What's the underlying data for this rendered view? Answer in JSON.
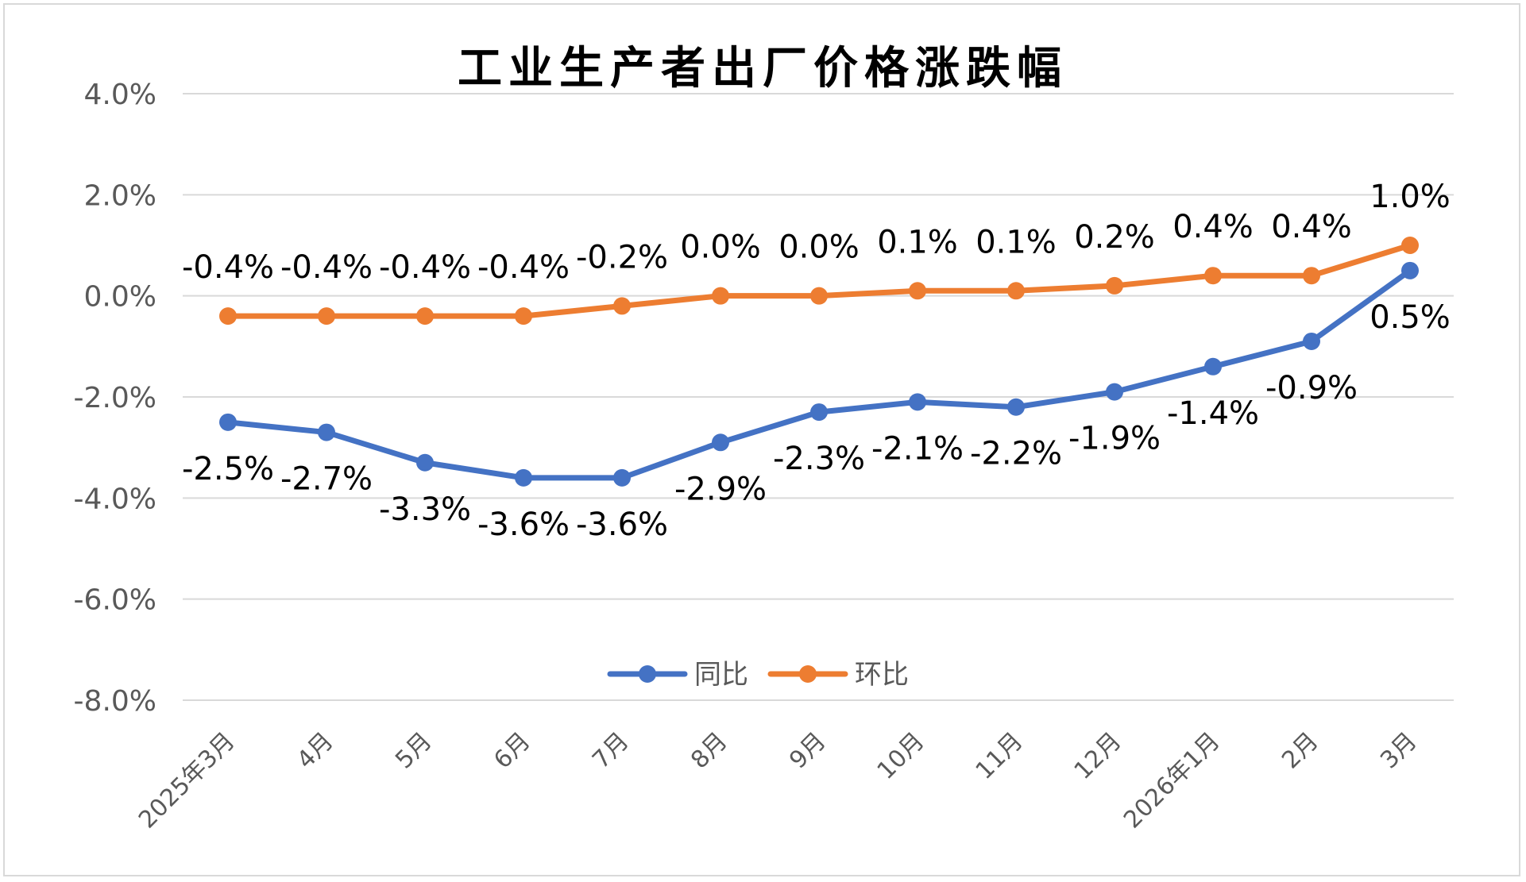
{
  "chart_data": {
    "type": "line",
    "title": "工业生产者出厂价格涨跌幅",
    "xlabel": "",
    "ylabel": "",
    "ylim": [
      -8.0,
      4.0
    ],
    "yticks": [
      4.0,
      2.0,
      0.0,
      -2.0,
      -4.0,
      -6.0,
      -8.0
    ],
    "ytick_labels": [
      "4.0%",
      "2.0%",
      "0.0%",
      "-2.0%",
      "-4.0%",
      "-6.0%",
      "-8.0%"
    ],
    "grid": true,
    "legend_position": "bottom-center",
    "categories": [
      "2025年3月",
      "4月",
      "5月",
      "6月",
      "7月",
      "8月",
      "9月",
      "10月",
      "11月",
      "12月",
      "2026年1月",
      "2月",
      "3月"
    ],
    "series": [
      {
        "name": "同比",
        "color": "#4472c4",
        "values": [
          -2.5,
          -2.7,
          -3.3,
          -3.6,
          -3.6,
          -2.9,
          -2.3,
          -2.1,
          -2.2,
          -1.9,
          -1.4,
          -0.9,
          0.5
        ],
        "labels": [
          "-2.5%",
          "-2.7%",
          "-3.3%",
          "-3.6%",
          "-3.6%",
          "-2.9%",
          "-2.3%",
          "-2.1%",
          "-2.2%",
          "-1.9%",
          "-1.4%",
          "-0.9%",
          "0.5%"
        ]
      },
      {
        "name": "环比",
        "color": "#ed7d31",
        "values": [
          -0.4,
          -0.4,
          -0.4,
          -0.4,
          -0.2,
          0.0,
          0.0,
          0.1,
          0.1,
          0.2,
          0.4,
          0.4,
          1.0
        ],
        "labels": [
          "-0.4%",
          "-0.4%",
          "-0.4%",
          "-0.4%",
          "-0.2%",
          "0.0%",
          "0.0%",
          "0.1%",
          "0.1%",
          "0.2%",
          "0.4%",
          "0.4%",
          "1.0%"
        ]
      }
    ]
  }
}
